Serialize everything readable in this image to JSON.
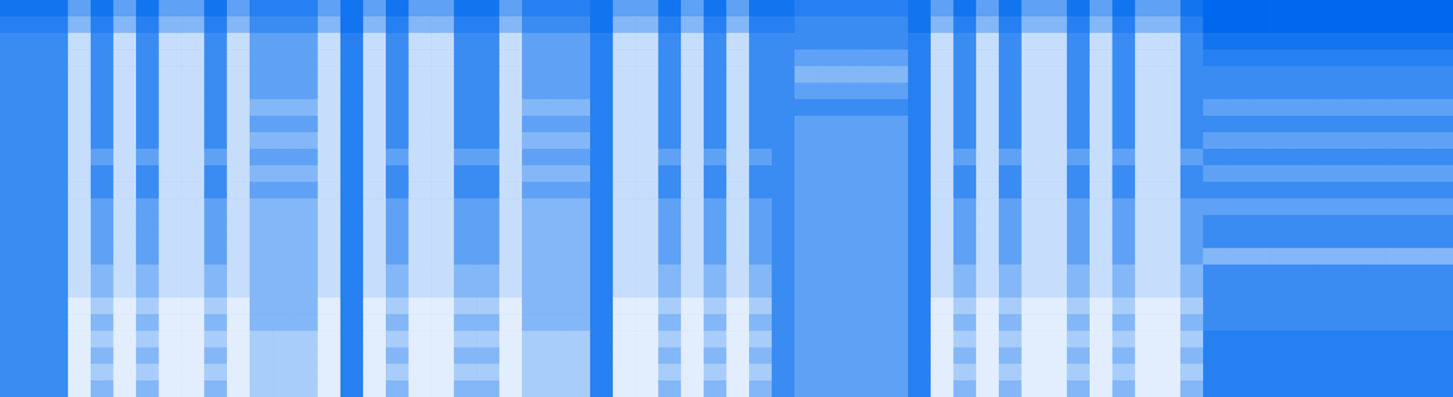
{
  "chart_data": {
    "type": "heatmap",
    "tick_labels": false,
    "grid": false,
    "zlim": [
      0,
      9
    ],
    "colors": [
      "#0068ee",
      "#3a8cf2",
      "#a9cdfa",
      "#ffffff"
    ],
    "cells": [
      [
        1,
        1,
        1,
        4,
        1,
        4,
        1,
        4,
        4,
        1,
        4,
        2,
        2,
        2,
        4,
        1,
        4,
        1,
        4,
        4,
        1,
        1,
        4,
        2,
        2,
        2,
        1,
        4,
        4,
        1,
        4,
        1,
        4,
        1,
        1,
        2,
        2,
        2,
        2,
        2,
        1,
        4,
        1,
        4,
        1,
        4,
        4,
        1,
        4,
        1,
        4,
        4,
        1,
        0,
        0,
        0,
        0,
        0,
        0,
        0,
        0,
        0,
        0,
        0
      ],
      [
        2,
        2,
        2,
        5,
        2,
        5,
        2,
        5,
        5,
        2,
        5,
        3,
        3,
        3,
        5,
        1,
        5,
        2,
        5,
        5,
        2,
        2,
        5,
        3,
        3,
        3,
        1,
        5,
        5,
        2,
        5,
        2,
        5,
        2,
        2,
        3,
        3,
        3,
        3,
        3,
        1,
        5,
        2,
        5,
        2,
        5,
        5,
        2,
        5,
        2,
        5,
        5,
        2,
        0,
        0,
        0,
        0,
        0,
        0,
        0,
        0,
        0,
        0,
        0
      ],
      [
        3,
        3,
        3,
        7,
        3,
        7,
        3,
        7,
        7,
        3,
        7,
        4,
        4,
        4,
        7,
        2,
        7,
        3,
        7,
        7,
        3,
        3,
        7,
        4,
        4,
        4,
        2,
        7,
        7,
        3,
        7,
        3,
        7,
        3,
        3,
        3,
        3,
        3,
        3,
        3,
        2,
        7,
        3,
        7,
        3,
        7,
        7,
        3,
        7,
        3,
        7,
        7,
        3,
        1,
        1,
        1,
        1,
        1,
        1,
        1,
        1,
        1,
        1,
        1
      ],
      [
        3,
        3,
        3,
        7,
        3,
        7,
        3,
        7,
        7,
        3,
        7,
        4,
        4,
        4,
        7,
        2,
        7,
        3,
        7,
        7,
        3,
        3,
        7,
        4,
        4,
        4,
        2,
        7,
        7,
        3,
        7,
        3,
        7,
        3,
        3,
        4,
        4,
        4,
        4,
        4,
        2,
        7,
        3,
        7,
        3,
        7,
        7,
        3,
        7,
        3,
        7,
        7,
        3,
        2,
        2,
        2,
        2,
        2,
        2,
        2,
        2,
        2,
        2,
        2
      ],
      [
        3,
        3,
        3,
        7,
        3,
        7,
        3,
        7,
        7,
        3,
        7,
        4,
        4,
        4,
        7,
        2,
        7,
        3,
        7,
        7,
        3,
        3,
        7,
        4,
        4,
        4,
        2,
        7,
        7,
        3,
        7,
        3,
        7,
        3,
        3,
        5,
        5,
        5,
        5,
        5,
        2,
        7,
        3,
        7,
        3,
        7,
        7,
        3,
        7,
        3,
        7,
        7,
        3,
        3,
        3,
        3,
        3,
        3,
        3,
        3,
        3,
        3,
        3,
        3
      ],
      [
        3,
        3,
        3,
        7,
        3,
        7,
        3,
        7,
        7,
        3,
        7,
        4,
        4,
        4,
        7,
        2,
        7,
        3,
        7,
        7,
        3,
        3,
        7,
        4,
        4,
        4,
        2,
        7,
        7,
        3,
        7,
        3,
        7,
        3,
        3,
        4,
        4,
        4,
        4,
        4,
        2,
        7,
        3,
        7,
        3,
        7,
        7,
        3,
        7,
        3,
        7,
        7,
        3,
        3,
        3,
        3,
        3,
        3,
        3,
        3,
        3,
        3,
        3,
        3
      ],
      [
        3,
        3,
        3,
        7,
        3,
        7,
        3,
        7,
        7,
        3,
        7,
        5,
        5,
        5,
        7,
        2,
        7,
        3,
        7,
        7,
        3,
        3,
        7,
        5,
        5,
        5,
        2,
        7,
        7,
        3,
        7,
        3,
        7,
        3,
        3,
        3,
        3,
        3,
        3,
        3,
        2,
        7,
        3,
        7,
        3,
        7,
        7,
        3,
        7,
        3,
        7,
        7,
        3,
        4,
        4,
        4,
        4,
        4,
        4,
        4,
        4,
        4,
        4,
        4
      ],
      [
        3,
        3,
        3,
        7,
        3,
        7,
        3,
        7,
        7,
        3,
        7,
        4,
        4,
        4,
        7,
        2,
        7,
        3,
        7,
        7,
        3,
        3,
        7,
        4,
        4,
        4,
        2,
        7,
        7,
        3,
        7,
        3,
        7,
        3,
        3,
        4,
        4,
        4,
        4,
        4,
        2,
        7,
        3,
        7,
        3,
        7,
        7,
        3,
        7,
        3,
        7,
        7,
        3,
        3,
        3,
        3,
        3,
        3,
        3,
        3,
        3,
        3,
        3,
        3
      ],
      [
        3,
        3,
        3,
        7,
        3,
        7,
        3,
        7,
        7,
        3,
        7,
        5,
        5,
        5,
        7,
        2,
        7,
        3,
        7,
        7,
        3,
        3,
        7,
        5,
        5,
        5,
        2,
        7,
        7,
        3,
        7,
        3,
        7,
        3,
        3,
        4,
        4,
        4,
        4,
        4,
        2,
        7,
        3,
        7,
        3,
        7,
        7,
        3,
        7,
        3,
        7,
        7,
        3,
        4,
        4,
        4,
        4,
        4,
        4,
        4,
        4,
        4,
        4,
        4
      ],
      [
        3,
        3,
        3,
        7,
        4,
        7,
        4,
        7,
        7,
        4,
        7,
        4,
        4,
        4,
        7,
        2,
        7,
        4,
        7,
        7,
        4,
        4,
        7,
        4,
        4,
        4,
        2,
        7,
        7,
        4,
        7,
        4,
        7,
        4,
        3,
        4,
        4,
        4,
        4,
        4,
        2,
        7,
        4,
        7,
        4,
        7,
        7,
        4,
        7,
        4,
        7,
        7,
        4,
        3,
        3,
        3,
        3,
        3,
        3,
        3,
        3,
        3,
        3,
        3
      ],
      [
        3,
        3,
        3,
        7,
        3,
        7,
        3,
        7,
        7,
        3,
        7,
        5,
        5,
        5,
        7,
        2,
        7,
        3,
        7,
        7,
        3,
        3,
        7,
        5,
        5,
        5,
        2,
        7,
        7,
        3,
        7,
        3,
        7,
        3,
        3,
        4,
        4,
        4,
        4,
        4,
        2,
        7,
        3,
        7,
        3,
        7,
        7,
        3,
        7,
        3,
        7,
        7,
        3,
        4,
        4,
        4,
        4,
        4,
        4,
        4,
        4,
        4,
        4,
        4
      ],
      [
        3,
        3,
        3,
        7,
        3,
        7,
        3,
        7,
        7,
        3,
        7,
        4,
        4,
        4,
        7,
        2,
        7,
        3,
        7,
        7,
        3,
        3,
        7,
        4,
        4,
        4,
        2,
        7,
        7,
        3,
        7,
        3,
        7,
        3,
        3,
        4,
        4,
        4,
        4,
        4,
        2,
        7,
        3,
        7,
        3,
        7,
        7,
        3,
        7,
        3,
        7,
        7,
        3,
        3,
        3,
        3,
        3,
        3,
        3,
        3,
        3,
        3,
        3,
        3
      ],
      [
        3,
        3,
        3,
        7,
        4,
        7,
        4,
        7,
        7,
        4,
        7,
        5,
        5,
        5,
        7,
        2,
        7,
        4,
        7,
        7,
        4,
        4,
        7,
        5,
        5,
        5,
        2,
        7,
        7,
        4,
        7,
        4,
        7,
        4,
        3,
        4,
        4,
        4,
        4,
        4,
        2,
        7,
        4,
        7,
        4,
        7,
        7,
        4,
        7,
        4,
        7,
        7,
        4,
        4,
        4,
        4,
        4,
        4,
        4,
        4,
        4,
        4,
        4,
        4
      ],
      [
        3,
        3,
        3,
        7,
        4,
        7,
        4,
        7,
        7,
        4,
        7,
        5,
        5,
        5,
        7,
        2,
        7,
        4,
        7,
        7,
        4,
        4,
        7,
        5,
        5,
        5,
        2,
        7,
        7,
        4,
        7,
        4,
        7,
        4,
        3,
        4,
        4,
        4,
        4,
        4,
        2,
        7,
        4,
        7,
        4,
        7,
        7,
        4,
        7,
        4,
        7,
        7,
        4,
        3,
        3,
        3,
        3,
        3,
        3,
        3,
        3,
        3,
        3,
        3
      ],
      [
        3,
        3,
        3,
        7,
        4,
        7,
        4,
        7,
        7,
        4,
        7,
        5,
        5,
        5,
        7,
        2,
        7,
        4,
        7,
        7,
        4,
        4,
        7,
        5,
        5,
        5,
        2,
        7,
        7,
        4,
        7,
        4,
        7,
        4,
        3,
        4,
        4,
        4,
        4,
        4,
        2,
        7,
        4,
        7,
        4,
        7,
        7,
        4,
        7,
        4,
        7,
        7,
        4,
        3,
        3,
        3,
        3,
        3,
        3,
        3,
        3,
        3,
        3,
        3
      ],
      [
        3,
        3,
        3,
        7,
        4,
        7,
        4,
        7,
        7,
        4,
        7,
        5,
        5,
        5,
        7,
        2,
        7,
        4,
        7,
        7,
        4,
        4,
        7,
        5,
        5,
        5,
        2,
        7,
        7,
        4,
        7,
        4,
        7,
        4,
        3,
        4,
        4,
        4,
        4,
        4,
        2,
        7,
        4,
        7,
        4,
        7,
        7,
        4,
        7,
        4,
        7,
        7,
        4,
        5,
        5,
        5,
        5,
        5,
        5,
        5,
        5,
        5,
        5,
        5
      ],
      [
        3,
        3,
        3,
        7,
        5,
        7,
        5,
        7,
        7,
        5,
        7,
        5,
        5,
        5,
        7,
        2,
        7,
        5,
        7,
        7,
        5,
        5,
        7,
        5,
        5,
        5,
        2,
        7,
        7,
        5,
        7,
        5,
        7,
        5,
        3,
        4,
        4,
        4,
        4,
        4,
        2,
        7,
        5,
        7,
        5,
        7,
        7,
        5,
        7,
        5,
        7,
        7,
        5,
        3,
        3,
        3,
        3,
        3,
        3,
        3,
        3,
        3,
        3,
        3
      ],
      [
        3,
        3,
        3,
        7,
        5,
        7,
        5,
        7,
        7,
        5,
        7,
        5,
        5,
        5,
        7,
        2,
        7,
        5,
        7,
        7,
        5,
        5,
        7,
        5,
        5,
        5,
        2,
        7,
        7,
        5,
        7,
        5,
        7,
        5,
        3,
        4,
        4,
        4,
        4,
        4,
        2,
        7,
        5,
        7,
        5,
        7,
        7,
        5,
        7,
        5,
        7,
        7,
        5,
        3,
        3,
        3,
        3,
        3,
        3,
        3,
        3,
        3,
        3,
        3
      ],
      [
        3,
        3,
        3,
        8,
        6,
        8,
        6,
        8,
        8,
        6,
        8,
        5,
        5,
        5,
        8,
        2,
        8,
        6,
        8,
        8,
        6,
        6,
        8,
        5,
        5,
        5,
        2,
        8,
        8,
        6,
        8,
        6,
        8,
        6,
        3,
        4,
        4,
        4,
        4,
        4,
        2,
        8,
        6,
        8,
        6,
        8,
        8,
        6,
        8,
        6,
        8,
        8,
        6,
        3,
        3,
        3,
        3,
        3,
        3,
        3,
        3,
        3,
        3,
        3
      ],
      [
        3,
        3,
        3,
        8,
        5,
        8,
        5,
        8,
        8,
        5,
        8,
        5,
        5,
        5,
        8,
        2,
        8,
        5,
        8,
        8,
        5,
        5,
        8,
        5,
        5,
        5,
        2,
        8,
        8,
        5,
        8,
        5,
        8,
        5,
        3,
        4,
        4,
        4,
        4,
        4,
        2,
        8,
        5,
        8,
        5,
        8,
        8,
        5,
        8,
        5,
        8,
        8,
        5,
        3,
        3,
        3,
        3,
        3,
        3,
        3,
        3,
        3,
        3,
        3
      ],
      [
        3,
        3,
        3,
        8,
        6,
        8,
        6,
        8,
        8,
        6,
        8,
        6,
        6,
        6,
        8,
        2,
        8,
        6,
        8,
        8,
        6,
        6,
        8,
        6,
        6,
        6,
        2,
        8,
        8,
        6,
        8,
        6,
        8,
        6,
        3,
        4,
        4,
        4,
        4,
        4,
        2,
        8,
        6,
        8,
        6,
        8,
        8,
        6,
        8,
        6,
        8,
        8,
        6,
        2,
        2,
        2,
        2,
        2,
        2,
        2,
        2,
        2,
        2,
        2
      ],
      [
        3,
        3,
        3,
        8,
        5,
        8,
        5,
        8,
        8,
        5,
        8,
        6,
        6,
        6,
        8,
        2,
        8,
        5,
        8,
        8,
        5,
        5,
        8,
        6,
        6,
        6,
        2,
        8,
        8,
        5,
        8,
        5,
        8,
        5,
        3,
        4,
        4,
        4,
        4,
        4,
        2,
        8,
        5,
        8,
        5,
        8,
        8,
        5,
        8,
        5,
        8,
        8,
        5,
        2,
        2,
        2,
        2,
        2,
        2,
        2,
        2,
        2,
        2,
        2
      ],
      [
        3,
        3,
        3,
        8,
        6,
        8,
        6,
        8,
        8,
        6,
        8,
        6,
        6,
        6,
        8,
        2,
        8,
        6,
        8,
        8,
        6,
        6,
        8,
        6,
        6,
        6,
        2,
        8,
        8,
        6,
        8,
        6,
        8,
        6,
        3,
        4,
        4,
        4,
        4,
        4,
        2,
        8,
        6,
        8,
        6,
        8,
        8,
        6,
        8,
        6,
        8,
        8,
        6,
        2,
        2,
        2,
        2,
        2,
        2,
        2,
        2,
        2,
        2,
        2
      ],
      [
        3,
        3,
        3,
        8,
        5,
        8,
        5,
        8,
        8,
        5,
        8,
        6,
        6,
        6,
        8,
        2,
        8,
        5,
        8,
        8,
        5,
        5,
        8,
        6,
        6,
        6,
        2,
        8,
        8,
        5,
        8,
        5,
        8,
        5,
        3,
        4,
        4,
        4,
        4,
        4,
        2,
        8,
        5,
        8,
        5,
        8,
        8,
        5,
        8,
        5,
        8,
        8,
        5,
        2,
        2,
        2,
        2,
        2,
        2,
        2,
        2,
        2,
        2,
        2
      ]
    ]
  }
}
